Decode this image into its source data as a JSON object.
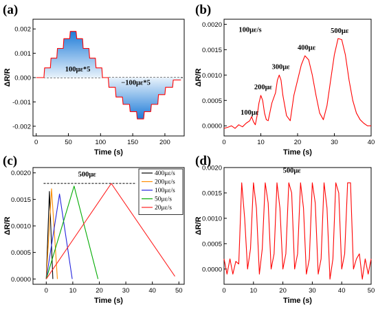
{
  "chart_data": [
    {
      "panel": "(a)",
      "type": "line",
      "xlabel": "Time (s)",
      "ylabel": "ΔR/R",
      "xlim": [
        -5,
        230
      ],
      "ylim": [
        -0.0024,
        0.0024
      ],
      "xticks": [
        0,
        50,
        100,
        150,
        200
      ],
      "yticks": [
        -0.002,
        -0.001,
        0.0,
        0.001,
        0.002
      ],
      "ytick_labels": [
        "-0.002",
        "-0.001",
        "0.000",
        "0.001",
        "0.002"
      ],
      "series": [
        {
          "color": "#ff0000",
          "fill_gradient": [
            "#1e7bd8",
            "#e8f2fb"
          ],
          "x": [
            0,
            12,
            13,
            22,
            23,
            32,
            33,
            42,
            43,
            52,
            53,
            62,
            63,
            72,
            73,
            82,
            83,
            92,
            93,
            102,
            103,
            112,
            113,
            123,
            124,
            134,
            135,
            145,
            146,
            156,
            157,
            167,
            168,
            178,
            179,
            189,
            190,
            200,
            201,
            212,
            213,
            225
          ],
          "y": [
            0.0,
            0.0,
            0.0004,
            0.0004,
            0.0008,
            0.0008,
            0.0012,
            0.0012,
            0.0016,
            0.0016,
            0.0019,
            0.0019,
            0.0016,
            0.0016,
            0.0012,
            0.0012,
            0.0008,
            0.0008,
            0.0004,
            0.0004,
            0.0,
            0.0,
            -0.0004,
            -0.0004,
            -0.0008,
            -0.0008,
            -0.0011,
            -0.0011,
            -0.0014,
            -0.0014,
            -0.0017,
            -0.0017,
            -0.0014,
            -0.0014,
            -0.0011,
            -0.0011,
            -0.0007,
            -0.0007,
            -0.0004,
            -0.0004,
            -0.0001,
            -0.0001
          ]
        }
      ],
      "reference_line": 0.0,
      "annotations": [
        "100με*5",
        "−100με*5"
      ]
    },
    {
      "panel": "(b)",
      "type": "line",
      "xlabel": "Time (s)",
      "ylabel": "ΔR/R",
      "xlim": [
        0,
        40
      ],
      "ylim": [
        -0.0002,
        0.0021
      ],
      "xticks": [
        0,
        10,
        20,
        30,
        40
      ],
      "yticks": [
        0.0,
        0.0005,
        0.001,
        0.0015,
        0.002
      ],
      "ytick_labels": [
        "0.0000",
        "0.0005",
        "0.0010",
        "0.0015",
        "0.0020"
      ],
      "series": [
        {
          "color": "#ff0000",
          "x": [
            0,
            1,
            2,
            3,
            4,
            5,
            6,
            7,
            7.5,
            8,
            8.5,
            9,
            9.5,
            10,
            10.5,
            11,
            11.5,
            12,
            13,
            14,
            14.5,
            15,
            15.5,
            16,
            17,
            18,
            19,
            20,
            21,
            22,
            23,
            24,
            25,
            26,
            27,
            28,
            29,
            30,
            31,
            32,
            33,
            34,
            35,
            36,
            37,
            38,
            39,
            40
          ],
          "y": [
            -5e-05,
            -3e-05,
            0.0,
            -5e-05,
            2e-05,
            -2e-05,
            5e-05,
            0.0001,
            0.00018,
            8e-05,
            2e-05,
            0.0002,
            0.00045,
            0.0006,
            0.0005,
            0.00025,
            0.00012,
            0.0001,
            0.00045,
            0.00065,
            0.0009,
            0.001,
            0.0009,
            0.0006,
            0.0002,
            0.0001,
            0.0006,
            0.0009,
            0.0012,
            0.00138,
            0.0013,
            0.001,
            0.0006,
            0.00025,
            0.00012,
            0.0004,
            0.0009,
            0.0014,
            0.00172,
            0.0017,
            0.0014,
            0.0009,
            0.0005,
            0.00025,
            0.00012,
            5e-05,
            0.0,
            0.0
          ]
        }
      ],
      "annotations": [
        "100με/s",
        "100με",
        "200με",
        "300με",
        "400με",
        "500με"
      ]
    },
    {
      "panel": "(c)",
      "type": "line",
      "xlabel": "Time (s)",
      "ylabel": "ΔR/R",
      "xlim": [
        -5,
        52
      ],
      "ylim": [
        -0.0001,
        0.0021
      ],
      "xticks": [
        0,
        10,
        20,
        30,
        40,
        50
      ],
      "yticks": [
        0.0,
        0.0005,
        0.001,
        0.0015,
        0.002
      ],
      "ytick_labels": [
        "0.0000",
        "0.0005",
        "0.0010",
        "0.0015",
        "0.0020"
      ],
      "reference_line": 0.0018,
      "annotations": [
        "500με"
      ],
      "legend_position": "top-right",
      "series": [
        {
          "name": "400με/s",
          "color": "#000000",
          "x": [
            0,
            1.2,
            2.5
          ],
          "y": [
            0.0,
            0.00165,
            0.0
          ]
        },
        {
          "name": "200με/s",
          "color": "#ff8c00",
          "x": [
            0,
            2.0,
            4.2
          ],
          "y": [
            0.0,
            0.0017,
            0.0
          ]
        },
        {
          "name": "100με/s",
          "color": "#2222dd",
          "x": [
            0,
            5.0,
            9.8
          ],
          "y": [
            0.0,
            0.0016,
            0.0
          ]
        },
        {
          "name": "50με/s",
          "color": "#00aa00",
          "x": [
            0,
            10.5,
            19.5
          ],
          "y": [
            0.0,
            0.00175,
            0.0
          ]
        },
        {
          "name": "20με/s",
          "color": "#ff2222",
          "x": [
            0,
            24.5,
            48.5
          ],
          "y": [
            0.0,
            0.0018,
            5e-05
          ]
        }
      ]
    },
    {
      "panel": "(d)",
      "type": "line",
      "xlabel": "Time (s)",
      "ylabel": "ΔR/R",
      "xlim": [
        0,
        50
      ],
      "ylim": [
        -0.0003,
        0.002
      ],
      "xticks": [
        0,
        10,
        20,
        30,
        40,
        50
      ],
      "yticks": [
        0.0,
        0.0005,
        0.001,
        0.0015,
        0.002
      ],
      "ytick_labels": [
        "0.0000",
        "0.0005",
        "0.0010",
        "0.0015",
        "0.0020"
      ],
      "annotations": [
        "500με"
      ],
      "series": [
        {
          "color": "#ff0000",
          "x": [
            0,
            1,
            2,
            3,
            4,
            5,
            6,
            7,
            8,
            9,
            10,
            11,
            12,
            13,
            14,
            15,
            16,
            17,
            18,
            19,
            20,
            21,
            22,
            23,
            24,
            25,
            26,
            27,
            28,
            29,
            30,
            31,
            32,
            33,
            34,
            35,
            36,
            37,
            38,
            39,
            40,
            41,
            42,
            43,
            44,
            45,
            46,
            47,
            48,
            49,
            50
          ],
          "y": [
            0.0002,
            -0.0001,
            0.0002,
            -0.0001,
            0.00015,
            0.0001,
            0.0017,
            0.001,
            0.0,
            0.0004,
            0.0017,
            0.0012,
            -0.0001,
            0.0004,
            0.0017,
            0.0013,
            0.0,
            0.0003,
            0.0017,
            0.0012,
            0.0,
            0.0003,
            0.0017,
            0.0015,
            0.0,
            0.0003,
            0.0017,
            0.0012,
            -0.0001,
            0.0002,
            0.0017,
            0.0013,
            -0.0001,
            0.0002,
            0.0017,
            0.0012,
            -0.0002,
            0.0002,
            0.0017,
            0.0015,
            0.0,
            0.0003,
            0.0017,
            0.0017,
            0.0,
            0.0002,
            0.0003,
            -0.0002,
            0.0002,
            -0.0001,
            0.0002
          ]
        }
      ]
    }
  ]
}
